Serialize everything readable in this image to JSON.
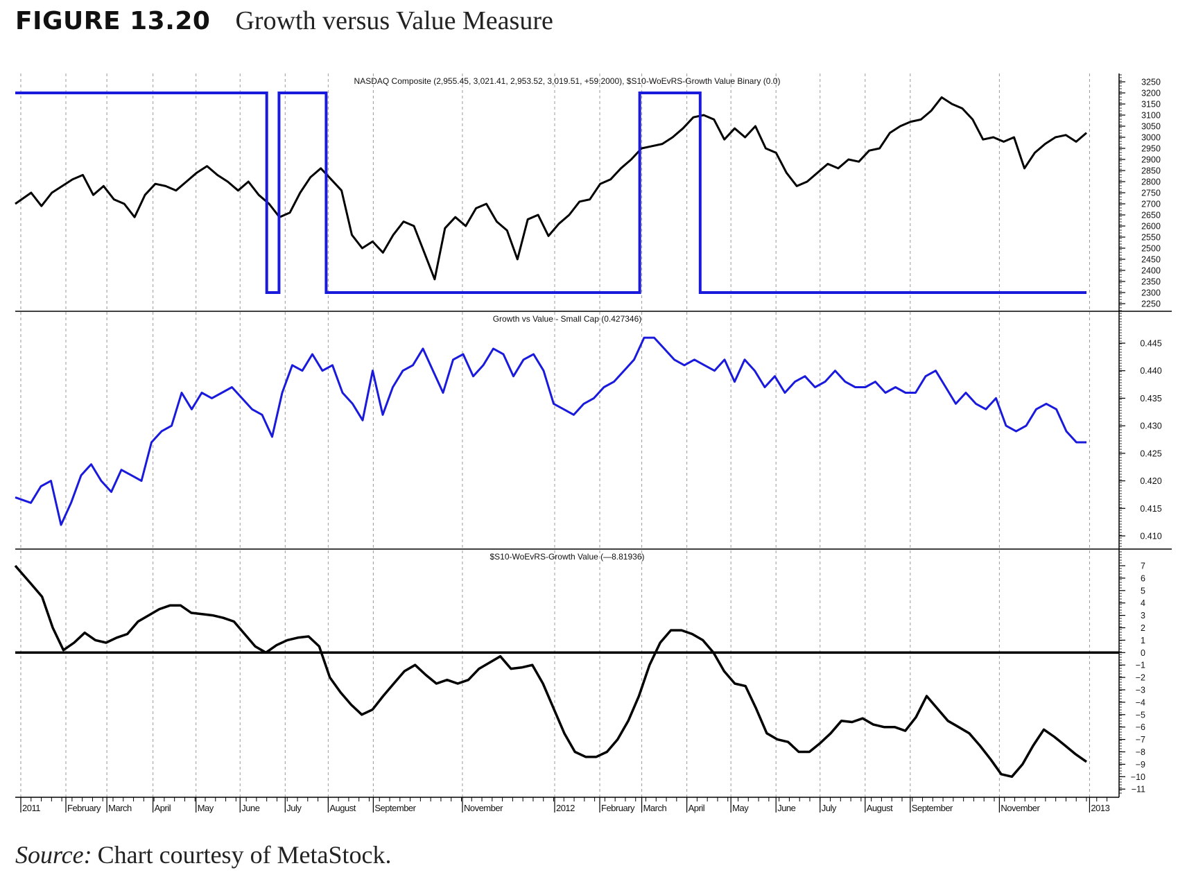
{
  "figure": {
    "number": "FIGURE 13.20",
    "title": "Growth versus Value Measure"
  },
  "source": {
    "label": "Source:",
    "text": "Chart courtesy of MetaStock."
  },
  "colors": {
    "price": "#000000",
    "binary": "#1a1adc",
    "ratio": "#1a1adc",
    "oscillator": "#000000",
    "grid": "#9a9a9a"
  },
  "chart_data": [
    {
      "type": "line",
      "title": "NASDAQ Composite (2,955.45, 3,021.41, 2,953.52, 3,019.51, +59.2000), $S10-WoEvRS-Growth Value Binary  (0.0)",
      "x_unit": "weeks since Jan 2011",
      "ylim": [
        2230,
        3270
      ],
      "yticks": [
        3250,
        3200,
        3150,
        3100,
        3050,
        3000,
        2950,
        2900,
        2850,
        2800,
        2750,
        2700,
        2650,
        2600,
        2550,
        2500,
        2450,
        2400,
        2350,
        2300,
        2250
      ],
      "series": [
        {
          "name": "NASDAQ Composite",
          "values": [
            2700,
            2750,
            2690,
            2750,
            2780,
            2810,
            2830,
            2740,
            2780,
            2720,
            2700,
            2640,
            2740,
            2790,
            2780,
            2760,
            2800,
            2840,
            2870,
            2830,
            2800,
            2760,
            2800,
            2740,
            2700,
            2640,
            2660,
            2750,
            2820,
            2860,
            2810,
            2760,
            2560,
            2500,
            2530,
            2480,
            2560,
            2620,
            2600,
            2480,
            2360,
            2590,
            2640,
            2600,
            2680,
            2700,
            2620,
            2580,
            2450,
            2630,
            2650,
            2555,
            2610,
            2650,
            2710,
            2720,
            2790,
            2810,
            2860,
            2900,
            2950,
            2960,
            2970,
            3000,
            3040,
            3090,
            3100,
            3080,
            2990,
            3040,
            3000,
            3050,
            2950,
            2930,
            2840,
            2780,
            2800,
            2840,
            2880,
            2860,
            2900,
            2890,
            2940,
            2950,
            3020,
            3050,
            3070,
            3080,
            3120,
            3180,
            3150,
            3130,
            3080,
            2990,
            3000,
            2980,
            3000,
            2860,
            2930,
            2970,
            3000,
            3010,
            2980,
            3020
          ]
        },
        {
          "name": "Growth Value Binary",
          "plot_levels": {
            "1": 3200,
            "0": 2300
          },
          "periods": [
            [
              0,
              24,
              1
            ],
            [
              24,
              25.2,
              0
            ],
            [
              25.2,
              29.8,
              1
            ],
            [
              29.8,
              60.4,
              0
            ],
            [
              60.4,
              66.3,
              1
            ],
            [
              66.3,
              104,
              0
            ]
          ]
        }
      ]
    },
    {
      "type": "line",
      "title": "Growth vs Value - Small Cap (0.427346)",
      "ylim": [
        0.408,
        0.448
      ],
      "yticks": [
        "0.445",
        "0.440",
        "0.435",
        "0.430",
        "0.425",
        "0.420",
        "0.415",
        "0.410"
      ],
      "series": [
        {
          "name": "Growth vs Value - Small Cap",
          "values": [
            0.417,
            0.416,
            0.419,
            0.42,
            0.412,
            0.416,
            0.421,
            0.423,
            0.42,
            0.418,
            0.422,
            0.421,
            0.42,
            0.427,
            0.429,
            0.43,
            0.436,
            0.433,
            0.436,
            0.435,
            0.436,
            0.437,
            0.435,
            0.433,
            0.432,
            0.428,
            0.436,
            0.441,
            0.44,
            0.443,
            0.44,
            0.441,
            0.436,
            0.434,
            0.431,
            0.44,
            0.432,
            0.437,
            0.44,
            0.441,
            0.444,
            0.44,
            0.436,
            0.442,
            0.443,
            0.439,
            0.441,
            0.444,
            0.443,
            0.439,
            0.442,
            0.443,
            0.44,
            0.434,
            0.433,
            0.432,
            0.434,
            0.435,
            0.437,
            0.438,
            0.44,
            0.442,
            0.446,
            0.446,
            0.444,
            0.442,
            0.441,
            0.442,
            0.441,
            0.44,
            0.442,
            0.438,
            0.442,
            0.44,
            0.437,
            0.439,
            0.436,
            0.438,
            0.439,
            0.437,
            0.438,
            0.44,
            0.438,
            0.437,
            0.437,
            0.438,
            0.436,
            0.437,
            0.436,
            0.436,
            0.439,
            0.44,
            0.437,
            0.434,
            0.436,
            0.434,
            0.433,
            0.435,
            0.43,
            0.429,
            0.43,
            0.433,
            0.434,
            0.433,
            0.429,
            0.427,
            0.427
          ]
        }
      ]
    },
    {
      "type": "line",
      "title": "$S10-WoEvRS-Growth Value (—8.81936)",
      "ylim": [
        -11.5,
        7.5
      ],
      "yticks": [
        "7",
        "6",
        "5",
        "4",
        "3",
        "2",
        "1",
        "0",
        "−1",
        "−2",
        "−3",
        "−4",
        "−5",
        "−6",
        "−7",
        "−8",
        "−9",
        "−10",
        "−11"
      ],
      "zero_line": 0,
      "series": [
        {
          "name": "$S10-WoEvRS-Growth Value",
          "values": [
            7,
            5.5,
            4.5,
            2,
            0.2,
            0.8,
            1.6,
            1,
            0.8,
            1.2,
            1.5,
            2.5,
            3,
            3.5,
            3.8,
            3.8,
            3.2,
            3.1,
            3,
            2.8,
            2.5,
            1.5,
            0.5,
            0,
            0.6,
            1,
            1.2,
            1.3,
            0.5,
            -2,
            -3.2,
            -4.2,
            -5,
            -4.6,
            -3.5,
            -2.5,
            -1.5,
            -1,
            -1.8,
            -2.5,
            -2.2,
            -2.5,
            -2.2,
            -1.3,
            -0.8,
            -0.3,
            -1.3,
            -1.2,
            -1,
            -2.5,
            -4.5,
            -6.5,
            -8,
            -8.4,
            -8.4,
            -8,
            -7,
            -5.5,
            -3.5,
            -1,
            0.8,
            1.8,
            1.8,
            1.5,
            1,
            0,
            -1.5,
            -2.5,
            -2.7,
            -4.5,
            -6.5,
            -7,
            -7.2,
            -8,
            -8,
            -7.3,
            -6.5,
            -5.5,
            -5.6,
            -5.3,
            -5.8,
            -6,
            -6,
            -6.3,
            -5.2,
            -3.5,
            -4.5,
            -5.5,
            -6,
            -6.5,
            -7.5,
            -8.6,
            -9.8,
            -10,
            -9,
            -7.5,
            -6.2,
            -6.8,
            -7.5,
            -8.2,
            -8.8
          ]
        }
      ]
    }
  ],
  "x_axis": {
    "range_weeks": [
      0,
      104
    ],
    "labels": [
      {
        "text": "2011",
        "week": 0
      },
      {
        "text": "February",
        "week": 4.4
      },
      {
        "text": "March",
        "week": 8.4
      },
      {
        "text": "April",
        "week": 12.9
      },
      {
        "text": "May",
        "week": 17.1
      },
      {
        "text": "June",
        "week": 21.4
      },
      {
        "text": "July",
        "week": 25.8
      },
      {
        "text": "August",
        "week": 30
      },
      {
        "text": "September",
        "week": 34.4
      },
      {
        "text": "November",
        "week": 43.1
      },
      {
        "text": "2012",
        "week": 52.1
      },
      {
        "text": "February",
        "week": 56.5
      },
      {
        "text": "March",
        "week": 60.6
      },
      {
        "text": "April",
        "week": 65
      },
      {
        "text": "May",
        "week": 69.3
      },
      {
        "text": "June",
        "week": 73.7
      },
      {
        "text": "July",
        "week": 78
      },
      {
        "text": "August",
        "week": 82.4
      },
      {
        "text": "September",
        "week": 86.8
      },
      {
        "text": "November",
        "week": 95.5
      },
      {
        "text": "2013",
        "week": 104.3
      }
    ]
  }
}
